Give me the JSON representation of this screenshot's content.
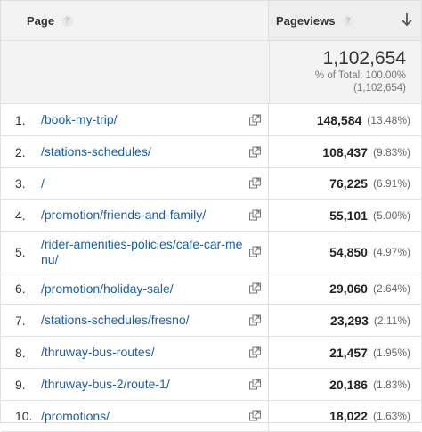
{
  "header": {
    "page_label": "Page",
    "help": "?",
    "pageviews_label": "Pageviews"
  },
  "totals": {
    "value": "1,102,654",
    "pct_label": "% of Total: 100.00%",
    "abs_label": "(1,102,654)"
  },
  "rows": [
    {
      "rank": "1.",
      "page": "/book-my-trip/",
      "pageviews": "148,584",
      "pct": "(13.48%)"
    },
    {
      "rank": "2.",
      "page": "/stations-schedules/",
      "pageviews": "108,437",
      "pct": "(9.83%)"
    },
    {
      "rank": "3.",
      "page": "/",
      "pageviews": "76,225",
      "pct": "(6.91%)"
    },
    {
      "rank": "4.",
      "page": "/promotion/friends-and-family/",
      "pageviews": "55,101",
      "pct": "(5.00%)"
    },
    {
      "rank": "5.",
      "page": "/rider-amenities-policies/cafe-car-menu/",
      "pageviews": "54,850",
      "pct": "(4.97%)"
    },
    {
      "rank": "6.",
      "page": "/promotion/holiday-sale/",
      "pageviews": "29,060",
      "pct": "(2.64%)"
    },
    {
      "rank": "7.",
      "page": "/stations-schedules/fresno/",
      "pageviews": "23,293",
      "pct": "(2.11%)"
    },
    {
      "rank": "8.",
      "page": "/thruway-bus-routes/",
      "pageviews": "21,457",
      "pct": "(1.95%)"
    },
    {
      "rank": "9.",
      "page": "/thruway-bus-2/route-1/",
      "pageviews": "20,186",
      "pct": "(1.83%)"
    },
    {
      "rank": "10.",
      "page": "/promotions/",
      "pageviews": "18,022",
      "pct": "(1.63%)"
    }
  ],
  "icons": {
    "help": "help-icon",
    "sort": "arrow-down-icon",
    "open": "open-in-new-window-icon"
  },
  "colors": {
    "link": "#1a5fa6",
    "header_bg": "#f3f3f3",
    "border": "#e0e0e0"
  }
}
